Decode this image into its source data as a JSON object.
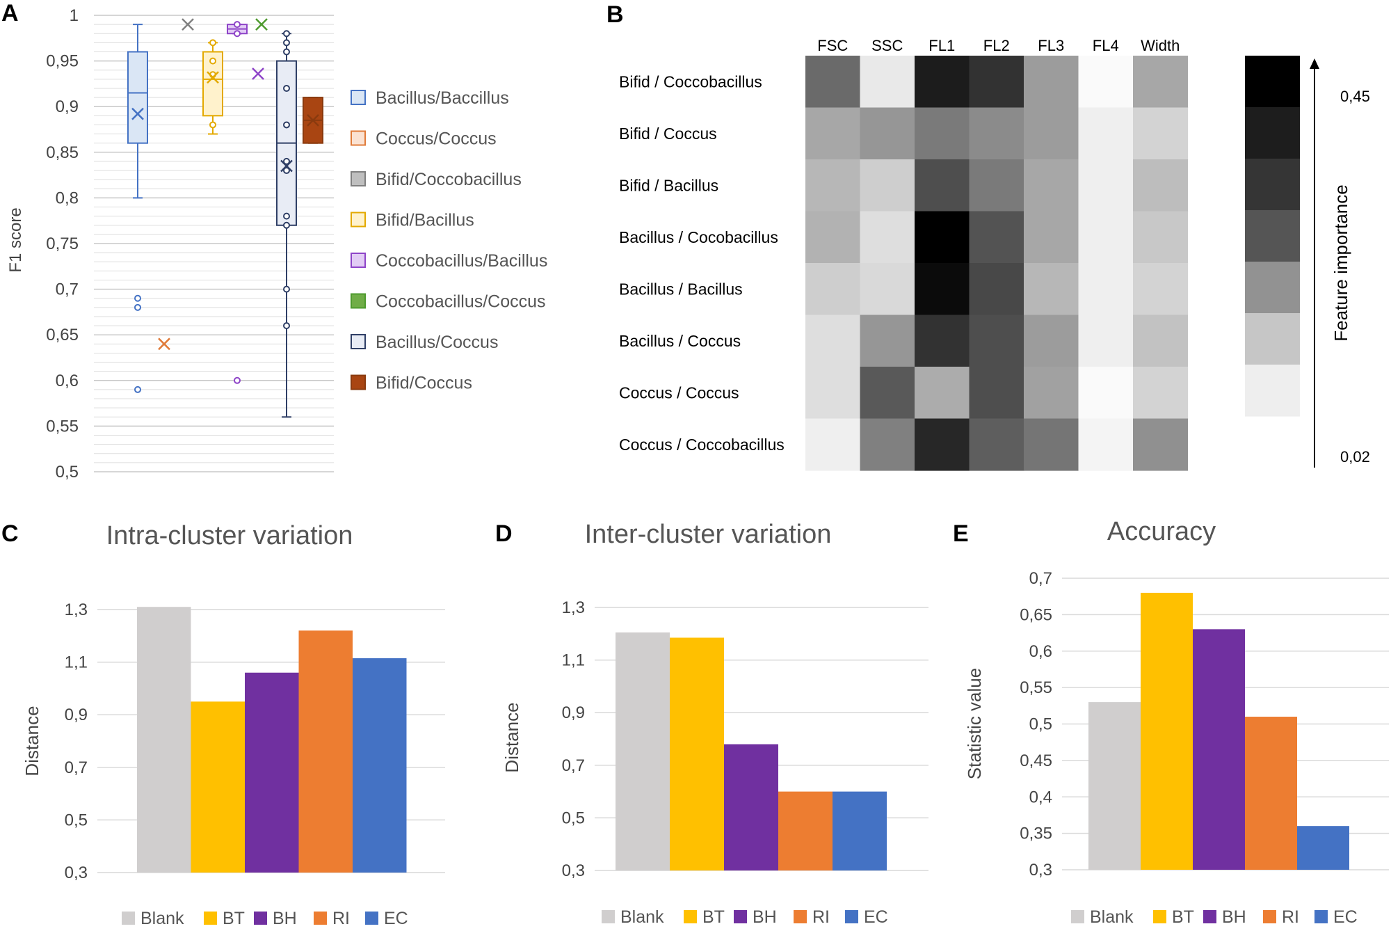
{
  "panels": {
    "A": "A",
    "B": "B",
    "C": "C",
    "D": "D",
    "E": "E"
  },
  "chart_data": [
    {
      "id": "A",
      "type": "box",
      "title": "",
      "ylabel": "F1 score",
      "ylim": [
        0.5,
        1.0
      ],
      "ytick_labels": [
        "0,5",
        "0,55",
        "0,6",
        "0,65",
        "0,7",
        "0,75",
        "0,8",
        "0,85",
        "0,9",
        "0,95",
        "1"
      ],
      "series": [
        {
          "name": "Bacillus/Baccillus",
          "color": "#4472C4",
          "fill": "#DAE6F5",
          "whisker_low": 0.8,
          "q1": 0.86,
          "median": 0.915,
          "q3": 0.96,
          "whisker_high": 0.99,
          "mean": 0.892,
          "outliers": [
            0.69,
            0.68,
            0.59
          ]
        },
        {
          "name": "Coccus/Coccus",
          "color": "#E07B39",
          "fill": "#FBE2D2",
          "whisker_low": 0.64,
          "q1": 0.64,
          "median": 0.64,
          "q3": 0.64,
          "whisker_high": 0.64,
          "mean": 0.64,
          "outliers": []
        },
        {
          "name": "Bifid/Coccobacillus",
          "color": "#808080",
          "fill": "#BFBFBF",
          "whisker_low": 0.99,
          "q1": 0.99,
          "median": 0.99,
          "q3": 0.99,
          "whisker_high": 0.99,
          "mean": 0.99,
          "outliers": []
        },
        {
          "name": "Bifid/Bacillus",
          "color": "#E3A900",
          "fill": "#FFF2CC",
          "whisker_low": 0.87,
          "q1": 0.89,
          "median": 0.93,
          "q3": 0.96,
          "whisker_high": 0.97,
          "mean": 0.932,
          "outliers": [
            0.97,
            0.95,
            0.935,
            0.88
          ]
        },
        {
          "name": "Coccobacillus/Bacillus",
          "color": "#8E44C8",
          "fill": "#E2CCF5",
          "whisker_low": 0.98,
          "q1": 0.98,
          "median": 0.985,
          "q3": 0.99,
          "whisker_high": 0.99,
          "mean": 0.936,
          "outliers": [
            0.99,
            0.98,
            0.6
          ]
        },
        {
          "name": "Coccobacillus/Coccus",
          "color": "#4E9A2E",
          "fill": "#70AD47",
          "whisker_low": 0.99,
          "q1": 0.99,
          "median": 0.99,
          "q3": 0.99,
          "whisker_high": 0.99,
          "mean": 0.99,
          "outliers": []
        },
        {
          "name": "Bacillus/Coccus",
          "color": "#2F3F66",
          "fill": "#E8ECF5",
          "whisker_low": 0.56,
          "q1": 0.77,
          "median": 0.86,
          "q3": 0.95,
          "whisker_high": 0.98,
          "mean": 0.835,
          "outliers": [
            0.98,
            0.97,
            0.96,
            0.92,
            0.88,
            0.84,
            0.83,
            0.78,
            0.77,
            0.7,
            0.66
          ]
        },
        {
          "name": "Bifid/Coccus",
          "color": "#8A3A0E",
          "fill": "#A94512",
          "whisker_low": 0.86,
          "q1": 0.86,
          "median": 0.885,
          "q3": 0.91,
          "whisker_high": 0.91,
          "mean": 0.885,
          "outliers": []
        }
      ]
    },
    {
      "id": "B",
      "type": "heatmap",
      "columns": [
        "FSC",
        "SSC",
        "FL1",
        "FL2",
        "FL3",
        "FL4",
        "Width"
      ],
      "rows": [
        "Bifid / Coccobacillus",
        "Bifid / Coccus",
        "Bifid / Bacillus",
        "Bacillus / Cocobacillus",
        "Bacillus / Bacillus",
        "Bacillus / Coccus",
        "Coccus / Coccus",
        "Coccus / Coccobacillus"
      ],
      "values": [
        [
          0.26,
          0.03,
          0.4,
          0.36,
          0.17,
          0.0,
          0.15
        ],
        [
          0.15,
          0.18,
          0.23,
          0.2,
          0.17,
          0.02,
          0.07
        ],
        [
          0.12,
          0.08,
          0.31,
          0.23,
          0.15,
          0.02,
          0.11
        ],
        [
          0.13,
          0.05,
          0.45,
          0.3,
          0.15,
          0.02,
          0.09
        ],
        [
          0.08,
          0.06,
          0.43,
          0.32,
          0.12,
          0.02,
          0.07
        ],
        [
          0.05,
          0.18,
          0.36,
          0.31,
          0.17,
          0.02,
          0.1
        ],
        [
          0.05,
          0.29,
          0.14,
          0.31,
          0.16,
          0.0,
          0.07
        ],
        [
          0.02,
          0.22,
          0.38,
          0.28,
          0.24,
          0.01,
          0.19
        ]
      ],
      "scale_label": "Feature importance",
      "scale_max": "0,45",
      "scale_min": "0,02",
      "scale_steps": [
        "#000000",
        "#1D1D1D",
        "#353535",
        "#555555",
        "#929292",
        "#C6C6C6",
        "#EEEEEE"
      ]
    },
    {
      "id": "C",
      "type": "bar",
      "title": "Intra-cluster variation",
      "xlabel": "",
      "ylabel": "Distance",
      "ylim": [
        0.3,
        1.3
      ],
      "ytick_labels": [
        "0,3",
        "0,5",
        "0,7",
        "0,9",
        "1,1",
        "1,3"
      ],
      "categories": [
        "Blank",
        "BT",
        "BH",
        "RI",
        "EC"
      ],
      "values": [
        1.31,
        0.95,
        1.06,
        1.22,
        1.115
      ]
    },
    {
      "id": "D",
      "type": "bar",
      "title": "Inter-cluster variation",
      "xlabel": "",
      "ylabel": "Distance",
      "ylim": [
        0.3,
        1.3
      ],
      "ytick_labels": [
        "0,3",
        "0,5",
        "0,7",
        "0,9",
        "1,1",
        "1,3"
      ],
      "categories": [
        "Blank",
        "BT",
        "BH",
        "RI",
        "EC"
      ],
      "values": [
        1.205,
        1.185,
        0.78,
        0.6,
        0.6
      ]
    },
    {
      "id": "E",
      "type": "bar",
      "title": "Accuracy",
      "xlabel": "",
      "ylabel": "Statistic value",
      "ylim": [
        0.3,
        0.7
      ],
      "ytick_labels": [
        "0,3",
        "0,35",
        "0,4",
        "0,45",
        "0,5",
        "0,55",
        "0,6",
        "0,65",
        "0,7"
      ],
      "categories": [
        "Blank",
        "BT",
        "BH",
        "RI",
        "EC"
      ],
      "values": [
        0.53,
        0.68,
        0.63,
        0.51,
        0.36
      ]
    }
  ],
  "bar_colors": [
    "#D0CECE",
    "#FFC000",
    "#7030A0",
    "#ED7D31",
    "#4472C4"
  ]
}
